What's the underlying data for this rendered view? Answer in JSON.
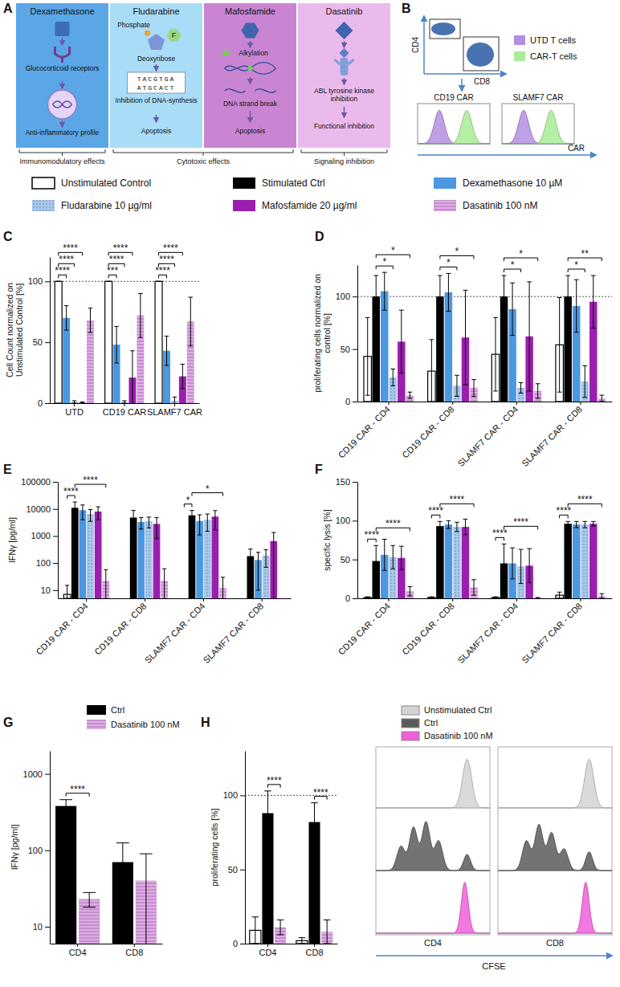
{
  "panel_a": {
    "panel_letter": "A",
    "boxes": [
      {
        "title": "Dexamethasone",
        "labels": [
          "Glucocorticoid receptors",
          "Anti-inflammatory profile"
        ],
        "color": "#5aa6e6"
      },
      {
        "title": "Fludarabine",
        "labels": [
          "Phosphate",
          "F",
          "Deoxyribose",
          "TACGTGA",
          "ATGCACT",
          "Inhibition of DNA-synthesis",
          "Apoptosis"
        ],
        "color": "#a9dcf7"
      },
      {
        "title": "Mafosfamide",
        "labels": [
          "Alkylation",
          "DNA strand break",
          "Apoptosis"
        ],
        "color": "#c985d2"
      },
      {
        "title": "Dasatinib",
        "labels": [
          "ABL tyrosine kinase inhibition",
          "Functional inhibition"
        ],
        "color": "#ebbaec"
      }
    ],
    "effects": [
      "Immunomodulatory effects",
      "Cytotoxic effects",
      "Signaling inhibition"
    ]
  },
  "panel_b": {
    "panel_letter": "B",
    "x_label": "CD8",
    "y_label": "CD4",
    "legend": [
      {
        "name": "UTD T cells",
        "color": "#b48ee0"
      },
      {
        "name": "CAR-T cells",
        "color": "#a8ec96"
      }
    ],
    "histograms": [
      "CD19 CAR",
      "SLAMF7 CAR"
    ],
    "histogram_x_label": "CAR"
  },
  "chart_data": [
    {
      "type": "bar",
      "panel_letter": "C",
      "y_label": "Cell Count normalized on Unstimulated Control [%]",
      "categories": [
        "UTD",
        "CD19 CAR",
        "SLAMF7 CAR"
      ],
      "ylim": [
        0,
        120
      ],
      "yticks": [
        0,
        50,
        100
      ],
      "ref_line": 100,
      "series": [
        {
          "name": "Unstimulated Control",
          "color": "#ffffff",
          "values": [
            100,
            100,
            100
          ],
          "errors": [
            0,
            0,
            0
          ]
        },
        {
          "name": "Dexamethasone 10 µM",
          "color": "#4b97e0",
          "values": [
            70,
            48,
            43
          ],
          "errors": [
            10,
            15,
            12
          ]
        },
        {
          "name": "Fludarabine 10 µg/ml",
          "color": "#a7c7ec",
          "marker": "dots",
          "values": [
            1,
            1,
            2
          ],
          "errors": [
            1,
            1,
            3
          ]
        },
        {
          "name": "Mafosfamide 20 µg/ml",
          "color": "#9b1fae",
          "values": [
            0.5,
            21,
            22
          ],
          "errors": [
            0.5,
            22,
            10
          ]
        },
        {
          "name": "Dasatinib 100 nM",
          "color": "#e3aaeb",
          "marker": "stripes",
          "values": [
            68,
            72,
            67
          ],
          "errors": [
            10,
            18,
            20
          ]
        }
      ],
      "significance": [
        {
          "category": "UTD",
          "between": [
            "Unstimulated Control",
            "Dexamethasone 10 µM"
          ],
          "label": "****"
        },
        {
          "category": "UTD",
          "between": [
            "Unstimulated Control",
            "Fludarabine 10 µg/ml"
          ],
          "label": "****"
        },
        {
          "category": "UTD",
          "between": [
            "Unstimulated Control",
            "Mafosfamide 20 µg/ml"
          ],
          "label": "****"
        },
        {
          "category": "CD19 CAR",
          "between": [
            "Unstimulated Control",
            "Dexamethasone 10 µM"
          ],
          "label": "***"
        },
        {
          "category": "CD19 CAR",
          "between": [
            "Unstimulated Control",
            "Fludarabine 10 µg/ml"
          ],
          "label": "****"
        },
        {
          "category": "CD19 CAR",
          "between": [
            "Unstimulated Control",
            "Mafosfamide 20 µg/ml"
          ],
          "label": "****"
        },
        {
          "category": "SLAMF7 CAR",
          "between": [
            "Unstimulated Control",
            "Dexamethasone 10 µM"
          ],
          "label": "****"
        },
        {
          "category": "SLAMF7 CAR",
          "between": [
            "Unstimulated Control",
            "Fludarabine 10 µg/ml"
          ],
          "label": "****"
        },
        {
          "category": "SLAMF7 CAR",
          "between": [
            "Unstimulated Control",
            "Mafosfamide 20 µg/ml"
          ],
          "label": "****"
        }
      ]
    },
    {
      "type": "bar",
      "panel_letter": "D",
      "y_label": "proliferating cells normalized on control [%]",
      "legend": "top",
      "categories": [
        "CD19 CAR - CD4",
        "CD19 CAR - CD8",
        "SLAMF7 CAR - CD4",
        "SLAMF7 CAR - CD8"
      ],
      "ylim": [
        0,
        130
      ],
      "yticks": [
        0,
        50,
        100
      ],
      "ref_line": 100,
      "series": [
        {
          "name": "Unstimulated Control",
          "color": "#ffffff",
          "values": [
            43,
            29,
            45,
            54
          ],
          "errors": [
            37,
            30,
            35,
            45
          ]
        },
        {
          "name": "Stimulated Ctrl",
          "color": "#000000",
          "values": [
            100,
            100,
            100,
            100
          ],
          "errors": [
            20,
            20,
            20,
            20
          ]
        },
        {
          "name": "Dexamethasone 10 µM",
          "color": "#4b97e0",
          "values": [
            105,
            104,
            88,
            91
          ],
          "errors": [
            18,
            18,
            25,
            25
          ]
        },
        {
          "name": "Fludarabine 10 µg/ml",
          "color": "#a7c7ec",
          "marker": "dots",
          "values": [
            23,
            15,
            13,
            19
          ],
          "errors": [
            8,
            10,
            5,
            15
          ]
        },
        {
          "name": "Mafosfamide 20 µg/ml",
          "color": "#9b1fae",
          "values": [
            57,
            61,
            62,
            95
          ],
          "errors": [
            30,
            45,
            52,
            25
          ]
        },
        {
          "name": "Dasatinib 100 nM",
          "color": "#e3aaeb",
          "marker": "stripes",
          "values": [
            6,
            13,
            10,
            3
          ],
          "errors": [
            3,
            8,
            7,
            3
          ]
        }
      ],
      "significance": [
        {
          "category": "CD19 CAR - CD4",
          "between": [
            "Stimulated Ctrl",
            "Fludarabine 10 µg/ml"
          ],
          "label": "*"
        },
        {
          "category": "CD19 CAR - CD4",
          "between": [
            "Stimulated Ctrl",
            "Dasatinib 100 nM"
          ],
          "label": "*"
        },
        {
          "category": "CD19 CAR - CD8",
          "between": [
            "Stimulated Ctrl",
            "Fludarabine 10 µg/ml"
          ],
          "label": "*"
        },
        {
          "category": "CD19 CAR - CD8",
          "between": [
            "Stimulated Ctrl",
            "Dasatinib 100 nM"
          ],
          "label": "*"
        },
        {
          "category": "SLAMF7 CAR - CD4",
          "between": [
            "Stimulated Ctrl",
            "Fludarabine 10 µg/ml"
          ],
          "label": "*"
        },
        {
          "category": "SLAMF7 CAR - CD4",
          "between": [
            "Stimulated Ctrl",
            "Dasatinib 100 nM"
          ],
          "label": "*"
        },
        {
          "category": "SLAMF7 CAR - CD8",
          "between": [
            "Stimulated Ctrl",
            "Fludarabine 10 µg/ml"
          ],
          "label": "*"
        },
        {
          "category": "SLAMF7 CAR - CD8",
          "between": [
            "Stimulated Ctrl",
            "Dasatinib 100 nM"
          ],
          "label": "**"
        }
      ]
    },
    {
      "type": "bar",
      "panel_letter": "E",
      "y_label": "IFNγ [pg/ml]",
      "log": true,
      "categories": [
        "CD19 CAR - CD4",
        "CD19 CAR - CD8",
        "SLAMF7 CAR - CD4",
        "SLAMF7 CAR - CD8"
      ],
      "ylim": [
        5,
        100000
      ],
      "yticks": [
        10,
        100,
        1000,
        10000,
        100000
      ],
      "series": [
        {
          "name": "Unstimulated Control",
          "color": "#ffffff",
          "values": [
            7,
            null,
            null,
            null
          ],
          "errors": [
            8,
            null,
            null,
            null
          ]
        },
        {
          "name": "Stimulated Ctrl",
          "color": "#000000",
          "values": [
            11000,
            4800,
            5800,
            180
          ],
          "errors": [
            7000,
            4000,
            3000,
            150
          ]
        },
        {
          "name": "Dexamethasone 10 µM",
          "color": "#4b97e0",
          "values": [
            9000,
            3300,
            3600,
            130
          ],
          "errors": [
            5000,
            1500,
            2500,
            120
          ]
        },
        {
          "name": "Fludarabine 10 µg/ml",
          "color": "#a7c7ec",
          "marker": "dots",
          "values": [
            6500,
            3500,
            4000,
            190
          ],
          "errors": [
            3000,
            1500,
            2500,
            120
          ]
        },
        {
          "name": "Mafosfamide 20 µg/ml",
          "color": "#9b1fae",
          "values": [
            8000,
            2800,
            5200,
            650
          ],
          "errors": [
            4000,
            2000,
            3500,
            700
          ]
        },
        {
          "name": "Dasatinib 100 nM",
          "color": "#e3aaeb",
          "marker": "stripes",
          "values": [
            22,
            22,
            12,
            null
          ],
          "errors": [
            35,
            40,
            18,
            null
          ]
        }
      ],
      "significance": [
        {
          "category": "CD19 CAR - CD4",
          "between": [
            "Unstimulated Control",
            "Stimulated Ctrl"
          ],
          "label": "****"
        },
        {
          "category": "CD19 CAR - CD4",
          "between": [
            "Stimulated Ctrl",
            "Dasatinib 100 nM"
          ],
          "label": "****"
        },
        {
          "category": "SLAMF7 CAR - CD4",
          "between": [
            "Unstimulated Control",
            "Stimulated Ctrl"
          ],
          "label": "*"
        },
        {
          "category": "SLAMF7 CAR - CD4",
          "between": [
            "Stimulated Ctrl",
            "Dasatinib 100 nM"
          ],
          "label": "*"
        }
      ]
    },
    {
      "type": "bar",
      "panel_letter": "F",
      "y_label": "specific lysis [%]",
      "categories": [
        "CD19 CAR - CD4",
        "CD19 CAR - CD8",
        "SLAMF7 CAR - CD4",
        "SLAMF7 CAR - CD8"
      ],
      "ylim": [
        0,
        150
      ],
      "yticks": [
        0,
        50,
        100,
        150
      ],
      "series": [
        {
          "name": "Unstimulated Control",
          "color": "#ffffff",
          "values": [
            1,
            1,
            1,
            4
          ],
          "errors": [
            1,
            1,
            1,
            4
          ]
        },
        {
          "name": "Stimulated Ctrl",
          "color": "#000000",
          "values": [
            48,
            93,
            45,
            96
          ],
          "errors": [
            20,
            6,
            25,
            3
          ]
        },
        {
          "name": "Dexamethasone 10 µM",
          "color": "#4b97e0",
          "values": [
            56,
            95,
            45,
            95
          ],
          "errors": [
            20,
            5,
            20,
            4
          ]
        },
        {
          "name": "Fludarabine 10 µg/ml",
          "color": "#a7c7ec",
          "marker": "dots",
          "values": [
            53,
            92,
            41,
            95
          ],
          "errors": [
            15,
            6,
            22,
            4
          ]
        },
        {
          "name": "Mafosfamide 20 µg/ml",
          "color": "#9b1fae",
          "values": [
            52,
            92,
            42,
            96
          ],
          "errors": [
            15,
            10,
            22,
            3
          ]
        },
        {
          "name": "Dasatinib 100 nM",
          "color": "#e3aaeb",
          "marker": "stripes",
          "values": [
            9,
            14,
            0.5,
            3
          ],
          "errors": [
            6,
            10,
            0.5,
            3
          ]
        }
      ],
      "significance": [
        {
          "category": "CD19 CAR - CD4",
          "between": [
            "Unstimulated Control",
            "Stimulated Ctrl"
          ],
          "label": "****"
        },
        {
          "category": "CD19 CAR - CD4",
          "between": [
            "Stimulated Ctrl",
            "Dasatinib 100 nM"
          ],
          "label": "****"
        },
        {
          "category": "CD19 CAR - CD8",
          "between": [
            "Unstimulated Control",
            "Stimulated Ctrl"
          ],
          "label": "****"
        },
        {
          "category": "CD19 CAR - CD8",
          "between": [
            "Stimulated Ctrl",
            "Dasatinib 100 nM"
          ],
          "label": "****"
        },
        {
          "category": "SLAMF7 CAR - CD4",
          "between": [
            "Unstimulated Control",
            "Stimulated Ctrl"
          ],
          "label": "****"
        },
        {
          "category": "SLAMF7 CAR - CD4",
          "between": [
            "Stimulated Ctrl",
            "Dasatinib 100 nM"
          ],
          "label": "****"
        },
        {
          "category": "SLAMF7 CAR - CD8",
          "between": [
            "Unstimulated Control",
            "Stimulated Ctrl"
          ],
          "label": "****"
        },
        {
          "category": "SLAMF7 CAR - CD8",
          "between": [
            "Stimulated Ctrl",
            "Dasatinib 100 nM"
          ],
          "label": "****"
        }
      ]
    },
    {
      "type": "bar",
      "panel_letter": "G",
      "y_label": "IFNγ [pg/ml]",
      "log": true,
      "legend": "top-right",
      "categories": [
        "CD4",
        "CD8"
      ],
      "ylim": [
        6,
        2000
      ],
      "yticks": [
        10,
        100,
        1000
      ],
      "series": [
        {
          "name": "Ctrl",
          "color": "#000000",
          "values": [
            380,
            70
          ],
          "errors": [
            80,
            55
          ]
        },
        {
          "name": "Dasatinib 100 nM",
          "color": "#e3aaeb",
          "marker": "stripes",
          "values": [
            23,
            40
          ],
          "errors": [
            5,
            50
          ]
        }
      ],
      "significance": [
        {
          "category": "CD4",
          "between": [
            "Ctrl",
            "Dasatinib 100 nM"
          ],
          "label": "****"
        }
      ]
    },
    {
      "type": "bar",
      "panel_letter": "H",
      "y_label": "proliferating cells [%]",
      "categories": [
        "CD4",
        "CD8"
      ],
      "ylim": [
        0,
        130
      ],
      "yticks": [
        0,
        50,
        100
      ],
      "ref_line": 100,
      "series": [
        {
          "name": "Unstimulated Ctrl",
          "color": "#ffffff",
          "values": [
            9,
            2
          ],
          "errors": [
            9,
            2
          ]
        },
        {
          "name": "Ctrl",
          "color": "#000000",
          "values": [
            88,
            82
          ],
          "errors": [
            15,
            13
          ]
        },
        {
          "name": "Dasatinib 100 nM",
          "color": "#e3aaeb",
          "marker": "stripes",
          "values": [
            11,
            8
          ],
          "errors": [
            5,
            8
          ]
        }
      ],
      "significance": [
        {
          "category": "CD4",
          "between": [
            "Ctrl",
            "Dasatinib 100 nM"
          ],
          "label": "****"
        },
        {
          "category": "CD8",
          "between": [
            "Ctrl",
            "Dasatinib 100 nM"
          ],
          "label": "****"
        }
      ]
    }
  ],
  "cfse_histograms": {
    "legend": [
      {
        "name": "Unstimulated Ctrl",
        "color": "#d4d4d4"
      },
      {
        "name": "Ctrl",
        "color": "#5a5a5a"
      },
      {
        "name": "Dasatinib 100 nM",
        "color": "#f060dc"
      }
    ],
    "panels": [
      "CD4",
      "CD8"
    ],
    "x_label": "CFSE"
  }
}
